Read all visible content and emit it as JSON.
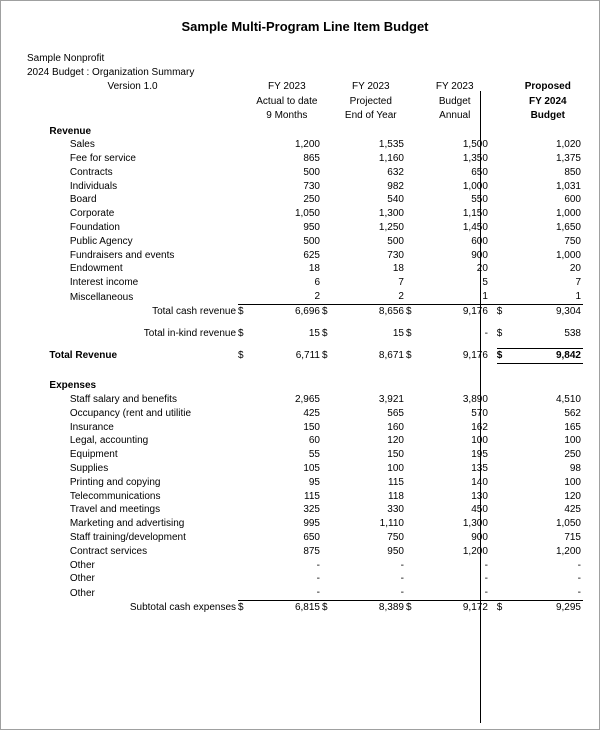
{
  "title": "Sample Multi-Program Line Item Budget",
  "meta": {
    "org": "Sample Nonprofit",
    "budget_line": "2024 Budget : Organization Summary",
    "version_label": "Version",
    "version": "1.0"
  },
  "columns": {
    "c1_l1": "FY 2023",
    "c1_l2": "Actual to date",
    "c1_l3": "9 Months",
    "c2_l1": "FY 2023",
    "c2_l2": "Projected",
    "c2_l3": "End of Year",
    "c3_l1": "FY 2023",
    "c3_l2": "Budget",
    "c3_l3": "Annual",
    "c4_l1": "Proposed",
    "c4_l2": "FY 2024",
    "c4_l3": "Budget"
  },
  "dollar": "$",
  "dash": "-",
  "sections": {
    "revenue": "Revenue",
    "expenses": "Expenses"
  },
  "revenue_rows": [
    {
      "label": "Sales",
      "v": [
        "1,200",
        "1,535",
        "1,500",
        "1,020"
      ]
    },
    {
      "label": "Fee for service",
      "v": [
        "865",
        "1,160",
        "1,350",
        "1,375"
      ]
    },
    {
      "label": "Contracts",
      "v": [
        "500",
        "632",
        "650",
        "850"
      ]
    },
    {
      "label": "Individuals",
      "v": [
        "730",
        "982",
        "1,000",
        "1,031"
      ]
    },
    {
      "label": "Board",
      "v": [
        "250",
        "540",
        "550",
        "600"
      ]
    },
    {
      "label": "Corporate",
      "v": [
        "1,050",
        "1,300",
        "1,150",
        "1,000"
      ]
    },
    {
      "label": "Foundation",
      "v": [
        "950",
        "1,250",
        "1,450",
        "1,650"
      ]
    },
    {
      "label": "Public Agency",
      "v": [
        "500",
        "500",
        "600",
        "750"
      ]
    },
    {
      "label": "Fundraisers and events",
      "v": [
        "625",
        "730",
        "900",
        "1,000"
      ]
    },
    {
      "label": "Endowment",
      "v": [
        "18",
        "18",
        "20",
        "20"
      ]
    },
    {
      "label": "Interest income",
      "v": [
        "6",
        "7",
        "5",
        "7"
      ]
    },
    {
      "label": "Miscellaneous",
      "v": [
        "2",
        "2",
        "1",
        "1"
      ]
    }
  ],
  "total_cash_rev": {
    "label": "Total cash revenue",
    "v": [
      "6,696",
      "8,656",
      "9,176",
      "9,304"
    ]
  },
  "total_inkind_rev": {
    "label": "Total in-kind revenue",
    "v": [
      "15",
      "15",
      "-",
      "538"
    ]
  },
  "total_revenue": {
    "label": "Total Revenue",
    "v": [
      "6,711",
      "8,671",
      "9,176",
      "9,842"
    ]
  },
  "expense_rows": [
    {
      "label": "Staff salary and benefits",
      "v": [
        "2,965",
        "3,921",
        "3,890",
        "4,510"
      ]
    },
    {
      "label": "Occupancy (rent and utilitie",
      "v": [
        "425",
        "565",
        "570",
        "562"
      ]
    },
    {
      "label": "Insurance",
      "v": [
        "150",
        "160",
        "162",
        "165"
      ]
    },
    {
      "label": "Legal, accounting",
      "v": [
        "60",
        "120",
        "100",
        "100"
      ]
    },
    {
      "label": "Equipment",
      "v": [
        "55",
        "150",
        "195",
        "250"
      ]
    },
    {
      "label": "Supplies",
      "v": [
        "105",
        "100",
        "135",
        "98"
      ]
    },
    {
      "label": "Printing and copying",
      "v": [
        "95",
        "115",
        "140",
        "100"
      ]
    },
    {
      "label": "Telecommunications",
      "v": [
        "115",
        "118",
        "130",
        "120"
      ]
    },
    {
      "label": "Travel and meetings",
      "v": [
        "325",
        "330",
        "450",
        "425"
      ]
    },
    {
      "label": "Marketing and advertising",
      "v": [
        "995",
        "1,110",
        "1,300",
        "1,050"
      ]
    },
    {
      "label": "Staff training/development",
      "v": [
        "650",
        "750",
        "900",
        "715"
      ]
    },
    {
      "label": "Contract services",
      "v": [
        "875",
        "950",
        "1,200",
        "1,200"
      ]
    },
    {
      "label": "Other",
      "v": [
        "-",
        "-",
        "-",
        "-"
      ]
    },
    {
      "label": "Other",
      "v": [
        "-",
        "-",
        "-",
        "-"
      ]
    },
    {
      "label": "Other",
      "v": [
        "-",
        "-",
        "-",
        "-"
      ]
    }
  ],
  "subtotal_cash_exp": {
    "label": "Subtotal cash expenses",
    "v": [
      "6,815",
      "8,389",
      "9,172",
      "9,295"
    ]
  }
}
